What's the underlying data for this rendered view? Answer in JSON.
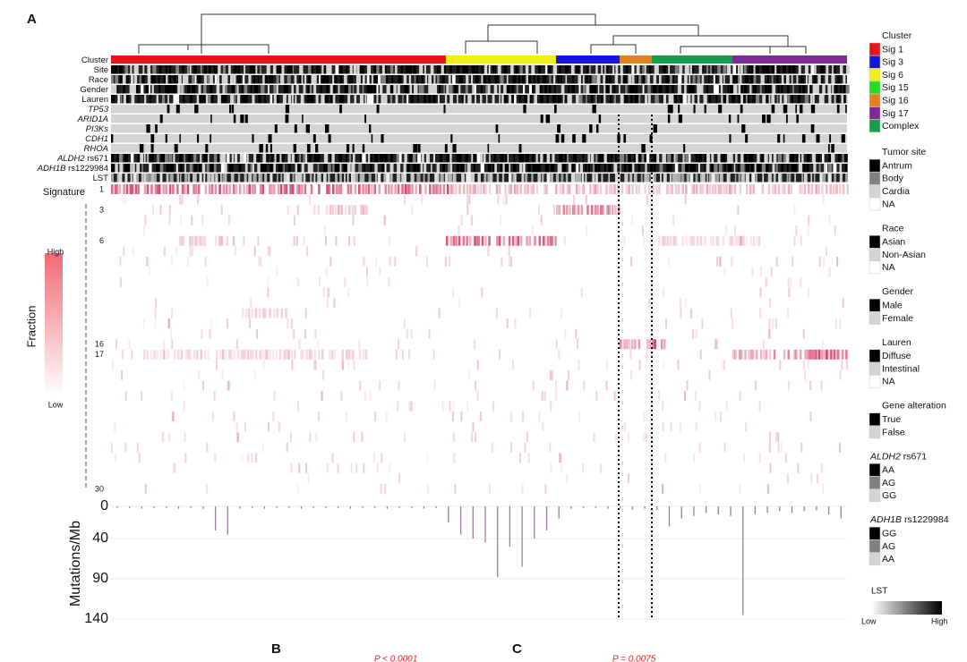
{
  "chart_data": {
    "type": "bar",
    "panel_label": "A",
    "annotation_rows": [
      {
        "label": "Cluster"
      },
      {
        "label": "Site"
      },
      {
        "label": "Race"
      },
      {
        "label": "Gender"
      },
      {
        "label": "Lauren"
      },
      {
        "label": "TP53",
        "italic": true
      },
      {
        "label": "ARID1A",
        "italic": true
      },
      {
        "label": "PI3Ks",
        "italic": true
      },
      {
        "label": "CDH1",
        "italic": true
      },
      {
        "label": "RHOA",
        "italic": true
      },
      {
        "label": "ALDH2",
        "italic": true,
        "suffix": "rs671"
      },
      {
        "label": "ADH1B",
        "italic": true,
        "suffix": "rs1229984"
      },
      {
        "label": "LST"
      }
    ],
    "signature_title": "Signature",
    "signature_labels": [
      "1",
      "3",
      "6",
      "16",
      "17",
      "30"
    ],
    "fraction_title": "Fraction",
    "fraction_high": "High",
    "fraction_low": "Low",
    "y_label": "Mutations/Mb",
    "ylim": [
      0,
      140
    ],
    "yticks": [
      0,
      40,
      90,
      140
    ],
    "color": "#9e7ba0",
    "values": [
      2,
      2,
      3,
      2,
      2,
      3,
      2,
      3,
      30,
      35,
      3,
      2,
      3,
      2,
      2,
      3,
      2,
      2,
      2,
      3,
      2,
      2,
      3,
      2,
      2,
      3,
      2,
      20,
      35,
      40,
      45,
      88,
      50,
      75,
      40,
      30,
      15,
      3,
      2,
      2,
      3,
      2,
      4,
      3,
      5,
      25,
      15,
      12,
      8,
      10,
      12,
      135,
      10,
      8,
      6,
      8,
      6,
      5,
      10,
      15
    ],
    "legend": [
      {
        "title": "Cluster",
        "items": [
          {
            "label": "Sig 1",
            "color": "#e8141c"
          },
          {
            "label": "Sig 3",
            "color": "#1515e0"
          },
          {
            "label": "Sig 6",
            "color": "#f2ee1a"
          },
          {
            "label": "Sig 15",
            "color": "#22dd22"
          },
          {
            "label": "Sig 16",
            "color": "#e5801e"
          },
          {
            "label": "Sig 17",
            "color": "#7d2c96"
          },
          {
            "label": "Complex",
            "color": "#14a04a"
          }
        ]
      },
      {
        "title": "Tumor site",
        "items": [
          {
            "label": "Antrum",
            "color": "#000000"
          },
          {
            "label": "Body",
            "color": "#808080"
          },
          {
            "label": "Cardia",
            "color": "#d4d4d4"
          },
          {
            "label": "NA",
            "color": "#ffffff"
          }
        ]
      },
      {
        "title": "Race",
        "items": [
          {
            "label": "Asian",
            "color": "#000000"
          },
          {
            "label": "Non-Asian",
            "color": "#d4d4d4"
          },
          {
            "label": "NA",
            "color": "#ffffff"
          }
        ]
      },
      {
        "title": "Gender",
        "items": [
          {
            "label": "Male",
            "color": "#000000"
          },
          {
            "label": "Female",
            "color": "#d4d4d4"
          }
        ]
      },
      {
        "title": "Lauren",
        "items": [
          {
            "label": "Diffuse",
            "color": "#000000"
          },
          {
            "label": "Intestinal",
            "color": "#d4d4d4"
          },
          {
            "label": "NA",
            "color": "#ffffff"
          }
        ]
      },
      {
        "title": "Gene alteration",
        "items": [
          {
            "label": "True",
            "color": "#000000"
          },
          {
            "label": "False",
            "color": "#d4d4d4"
          }
        ]
      },
      {
        "title": "ALDH2",
        "title_suffix": "rs671",
        "items": [
          {
            "label": "AA",
            "color": "#000000"
          },
          {
            "label": "AG",
            "color": "#808080"
          },
          {
            "label": "GG",
            "color": "#d4d4d4"
          }
        ]
      },
      {
        "title": "ADH1B",
        "title_suffix": "rs1229984",
        "items": [
          {
            "label": "GG",
            "color": "#000000"
          },
          {
            "label": "AG",
            "color": "#808080"
          },
          {
            "label": "AA",
            "color": "#d4d4d4"
          }
        ]
      }
    ],
    "lst_title": "LST",
    "lst_low": "Low",
    "lst_high": "High",
    "panel_b": "B",
    "panel_c": "C",
    "p_value_b": "P < 0.0001",
    "p_value_c": "P = 0.0075"
  }
}
